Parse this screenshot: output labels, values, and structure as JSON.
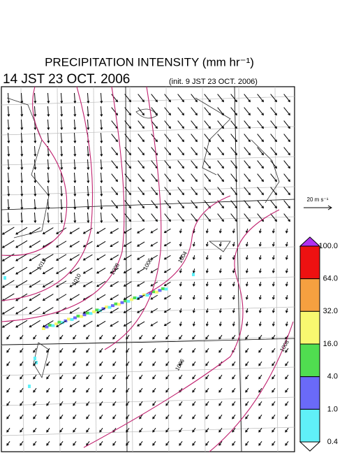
{
  "header": {
    "title": "PRECIPITATION INTENSITY (mm hr⁻¹)",
    "valid_time": "14 JST 23 OCT. 2006",
    "init_time": "(init. 9 JST 23 OCT. 2006)"
  },
  "isobar_labels": [
    "1012",
    "1010",
    "1008",
    "1006",
    "1004",
    "1006",
    "1008"
  ],
  "wind_legend": "20 m s⁻¹",
  "colorbar": {
    "labels": [
      "100.0",
      "64.0",
      "32.0",
      "16.0",
      "4.0",
      "1.0",
      "0.4"
    ],
    "colors": [
      "#ee1111",
      "#f5a040",
      "#f8f870",
      "#50dd50",
      "#6a6af8",
      "#60f0f8"
    ],
    "over_color": "#b030f0",
    "under_color": "#ffffff"
  }
}
